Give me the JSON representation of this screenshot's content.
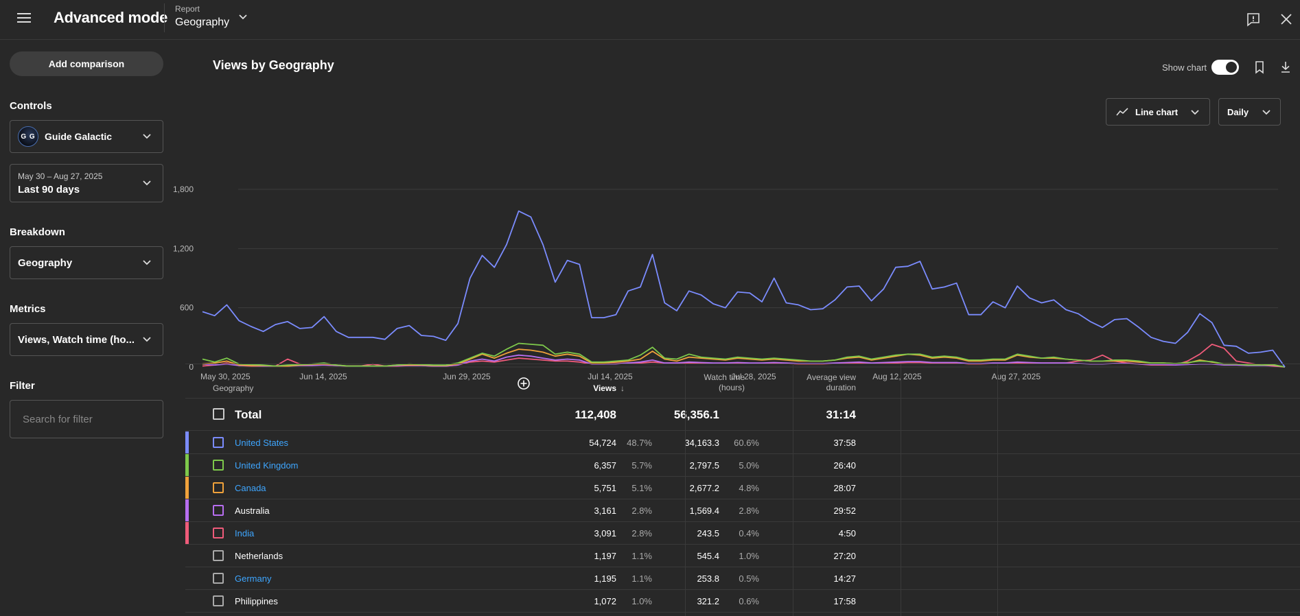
{
  "header": {
    "title": "Advanced mode",
    "report_label": "Report",
    "report_value": "Geography"
  },
  "sidebar": {
    "add_comparison": "Add comparison",
    "controls_title": "Controls",
    "channel": {
      "initials": "G G",
      "name": "Guide Galactic"
    },
    "date": {
      "range": "May 30 – Aug 27, 2025",
      "label": "Last 90 days"
    },
    "breakdown_title": "Breakdown",
    "breakdown_value": "Geography",
    "metrics_title": "Metrics",
    "metrics_value": "Views, Watch time (ho...",
    "filter_title": "Filter",
    "filter_placeholder": "Search for filter"
  },
  "main": {
    "title": "Views by Geography",
    "show_chart_label": "Show chart",
    "show_chart_on": true,
    "chart_type": "Line chart",
    "interval": "Daily"
  },
  "chart_data": {
    "type": "line",
    "title": "",
    "ylim": [
      0,
      1800
    ],
    "yticks": [
      "0",
      "600",
      "1,200",
      "1,800"
    ],
    "xtick_labels": [
      "May 30, 2025",
      "Jun 14, 2025",
      "Jun 29, 2025",
      "Jul 14, 2025",
      "Jul 28, 2025",
      "Aug 12, 2025",
      "Aug 27, 2025"
    ],
    "grid": true,
    "series": [
      {
        "color": "#7b8cff",
        "values": [
          560,
          520,
          630,
          470,
          410,
          360,
          430,
          460,
          390,
          400,
          510,
          360,
          300,
          300,
          300,
          280,
          390,
          420,
          320,
          310,
          270,
          440,
          900,
          1130,
          1010,
          1240,
          1580,
          1520,
          1240,
          860,
          1080,
          1040,
          500,
          500,
          530,
          770,
          810,
          1140,
          650,
          570,
          770,
          730,
          640,
          600,
          760,
          750,
          660,
          900,
          650,
          630,
          580,
          590,
          680,
          810,
          820,
          670,
          790,
          1010,
          1020,
          1070,
          790,
          810,
          850,
          530,
          530,
          660,
          600,
          820,
          700,
          650,
          680,
          580,
          540,
          460,
          400,
          480,
          490,
          400,
          300,
          260,
          240,
          350,
          540,
          450,
          220,
          210,
          140,
          150,
          170,
          0
        ]
      },
      {
        "color": "#7ec94b",
        "values": [
          80,
          50,
          90,
          30,
          25,
          20,
          10,
          20,
          25,
          30,
          40,
          20,
          10,
          10,
          10,
          10,
          20,
          30,
          25,
          20,
          20,
          40,
          90,
          140,
          110,
          180,
          240,
          230,
          220,
          130,
          150,
          130,
          50,
          50,
          60,
          70,
          120,
          200,
          90,
          80,
          130,
          100,
          90,
          80,
          100,
          90,
          80,
          90,
          80,
          70,
          60,
          60,
          70,
          100,
          110,
          80,
          100,
          120,
          130,
          130,
          100,
          110,
          100,
          70,
          70,
          80,
          80,
          130,
          110,
          90,
          100,
          80,
          70,
          60,
          60,
          70,
          70,
          60,
          40,
          40,
          35,
          45,
          60,
          55,
          30,
          30,
          20,
          20,
          25,
          0
        ]
      },
      {
        "color": "#f0a23b",
        "values": [
          30,
          40,
          60,
          20,
          15,
          15,
          10,
          10,
          20,
          25,
          30,
          20,
          10,
          10,
          10,
          10,
          20,
          20,
          20,
          15,
          15,
          30,
          80,
          130,
          90,
          140,
          180,
          170,
          150,
          110,
          130,
          110,
          40,
          40,
          50,
          60,
          80,
          160,
          80,
          60,
          100,
          90,
          80,
          70,
          90,
          80,
          70,
          80,
          70,
          60,
          60,
          60,
          70,
          90,
          100,
          70,
          90,
          110,
          130,
          120,
          90,
          100,
          90,
          60,
          60,
          70,
          70,
          120,
          100,
          90,
          90,
          80,
          70,
          60,
          60,
          60,
          60,
          50,
          40,
          40,
          35,
          40,
          70,
          50,
          30,
          30,
          20,
          20,
          20,
          0
        ]
      },
      {
        "color": "#b76ef0",
        "values": [
          30,
          20,
          30,
          15,
          15,
          10,
          10,
          10,
          15,
          15,
          20,
          15,
          10,
          10,
          10,
          10,
          15,
          15,
          15,
          10,
          10,
          20,
          60,
          80,
          60,
          100,
          120,
          110,
          90,
          70,
          80,
          70,
          30,
          30,
          30,
          40,
          50,
          70,
          40,
          40,
          50,
          45,
          40,
          40,
          45,
          40,
          40,
          45,
          40,
          35,
          35,
          35,
          40,
          45,
          50,
          40,
          45,
          50,
          55,
          55,
          45,
          45,
          45,
          35,
          35,
          40,
          40,
          50,
          45,
          40,
          40,
          40,
          35,
          30,
          30,
          35,
          35,
          30,
          25,
          25,
          20,
          25,
          30,
          30,
          20,
          20,
          15,
          15,
          15,
          0
        ]
      },
      {
        "color": "#ef5b7a",
        "values": [
          10,
          20,
          40,
          15,
          10,
          10,
          10,
          80,
          30,
          20,
          20,
          15,
          10,
          10,
          30,
          10,
          10,
          15,
          15,
          10,
          10,
          20,
          50,
          60,
          50,
          70,
          90,
          80,
          70,
          60,
          60,
          50,
          30,
          30,
          35,
          40,
          40,
          50,
          40,
          40,
          40,
          40,
          35,
          35,
          40,
          35,
          35,
          40,
          35,
          30,
          30,
          30,
          35,
          40,
          40,
          35,
          40,
          40,
          45,
          45,
          40,
          40,
          40,
          30,
          30,
          35,
          35,
          40,
          40,
          40,
          40,
          40,
          60,
          70,
          120,
          60,
          40,
          30,
          20,
          20,
          20,
          60,
          130,
          230,
          190,
          60,
          40,
          20,
          10,
          0
        ]
      }
    ]
  },
  "table": {
    "columns": {
      "geography": "Geography",
      "views": "Views",
      "watch_line1": "Watch time",
      "watch_line2": "(hours)",
      "avd_line1": "Average view",
      "avd_line2": "duration"
    },
    "total": {
      "name": "Total",
      "views": "112,408",
      "watch": "56,356.1",
      "avd": "31:14"
    },
    "rows": [
      {
        "name": "United States",
        "link": true,
        "color": "#7b8cff",
        "views": "54,724",
        "views_pct": "48.7%",
        "watch": "34,163.3",
        "watch_pct": "60.6%",
        "avd": "37:58"
      },
      {
        "name": "United Kingdom",
        "link": true,
        "color": "#7ec94b",
        "views": "6,357",
        "views_pct": "5.7%",
        "watch": "2,797.5",
        "watch_pct": "5.0%",
        "avd": "26:40"
      },
      {
        "name": "Canada",
        "link": true,
        "color": "#f0a23b",
        "views": "5,751",
        "views_pct": "5.1%",
        "watch": "2,677.2",
        "watch_pct": "4.8%",
        "avd": "28:07"
      },
      {
        "name": "Australia",
        "link": false,
        "color": "#b76ef0",
        "views": "3,161",
        "views_pct": "2.8%",
        "watch": "1,569.4",
        "watch_pct": "2.8%",
        "avd": "29:52"
      },
      {
        "name": "India",
        "link": true,
        "color": "#ef5b7a",
        "views": "3,091",
        "views_pct": "2.8%",
        "watch": "243.5",
        "watch_pct": "0.4%",
        "avd": "4:50"
      },
      {
        "name": "Netherlands",
        "link": false,
        "color": "",
        "views": "1,197",
        "views_pct": "1.1%",
        "watch": "545.4",
        "watch_pct": "1.0%",
        "avd": "27:20"
      },
      {
        "name": "Germany",
        "link": true,
        "color": "",
        "views": "1,195",
        "views_pct": "1.1%",
        "watch": "253.8",
        "watch_pct": "0.5%",
        "avd": "14:27"
      },
      {
        "name": "Philippines",
        "link": false,
        "color": "",
        "views": "1,072",
        "views_pct": "1.0%",
        "watch": "321.2",
        "watch_pct": "0.6%",
        "avd": "17:58"
      }
    ]
  }
}
